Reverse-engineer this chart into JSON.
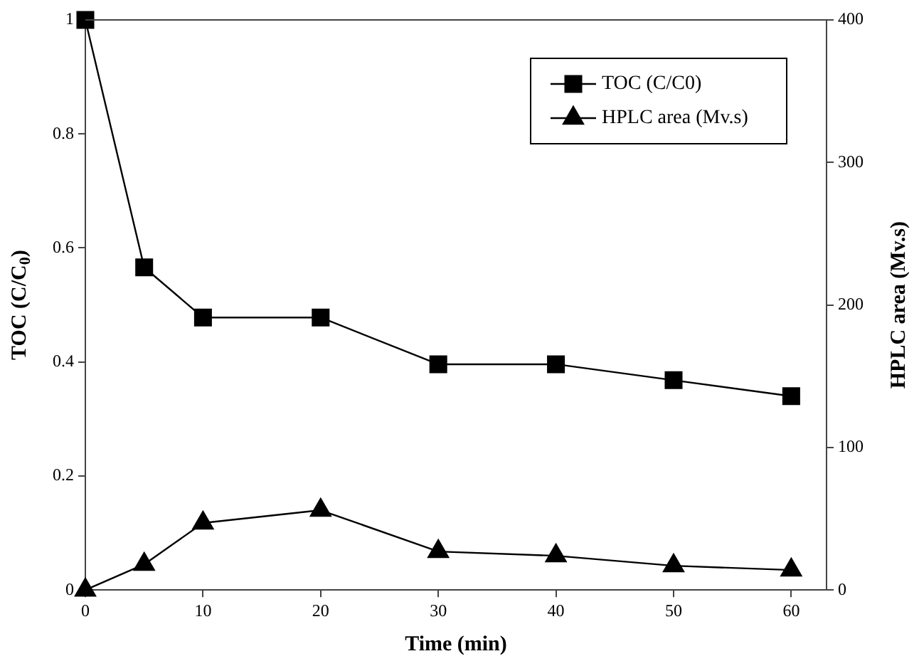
{
  "chart_data": {
    "type": "line",
    "xlabel": "Time (min)",
    "ylabel": "TOC (C/C$_{0}$)",
    "y2label": "HPLC area (Mv.s)",
    "x": [
      0,
      5,
      10,
      20,
      30,
      40,
      50,
      60
    ],
    "series": [
      {
        "name": "TOC (C/C0)",
        "color": "#000000",
        "marker": "square",
        "values": [
          1,
          0.566,
          0.478,
          0.478,
          0.396,
          0.396,
          0.368,
          0.34
        ]
      },
      {
        "name": "HPLC area (Mv.s)",
        "color": "#000000",
        "marker": "triangle",
        "axis": "y2",
        "values": [
          0,
          18,
          47,
          56,
          27,
          24,
          17,
          14
        ]
      }
    ],
    "xlim": [
      0,
      63
    ],
    "xticks": [
      0,
      10,
      20,
      30,
      40,
      50,
      60
    ],
    "ylim": [
      0,
      1
    ],
    "yticks": [
      0,
      0.2,
      0.4,
      0.6,
      0.8,
      1
    ],
    "y2lim": [
      0,
      400
    ],
    "y2ticks": [
      0,
      100,
      200,
      300,
      400
    ],
    "grid": false,
    "legend": "top right",
    "line_style": "solid"
  }
}
